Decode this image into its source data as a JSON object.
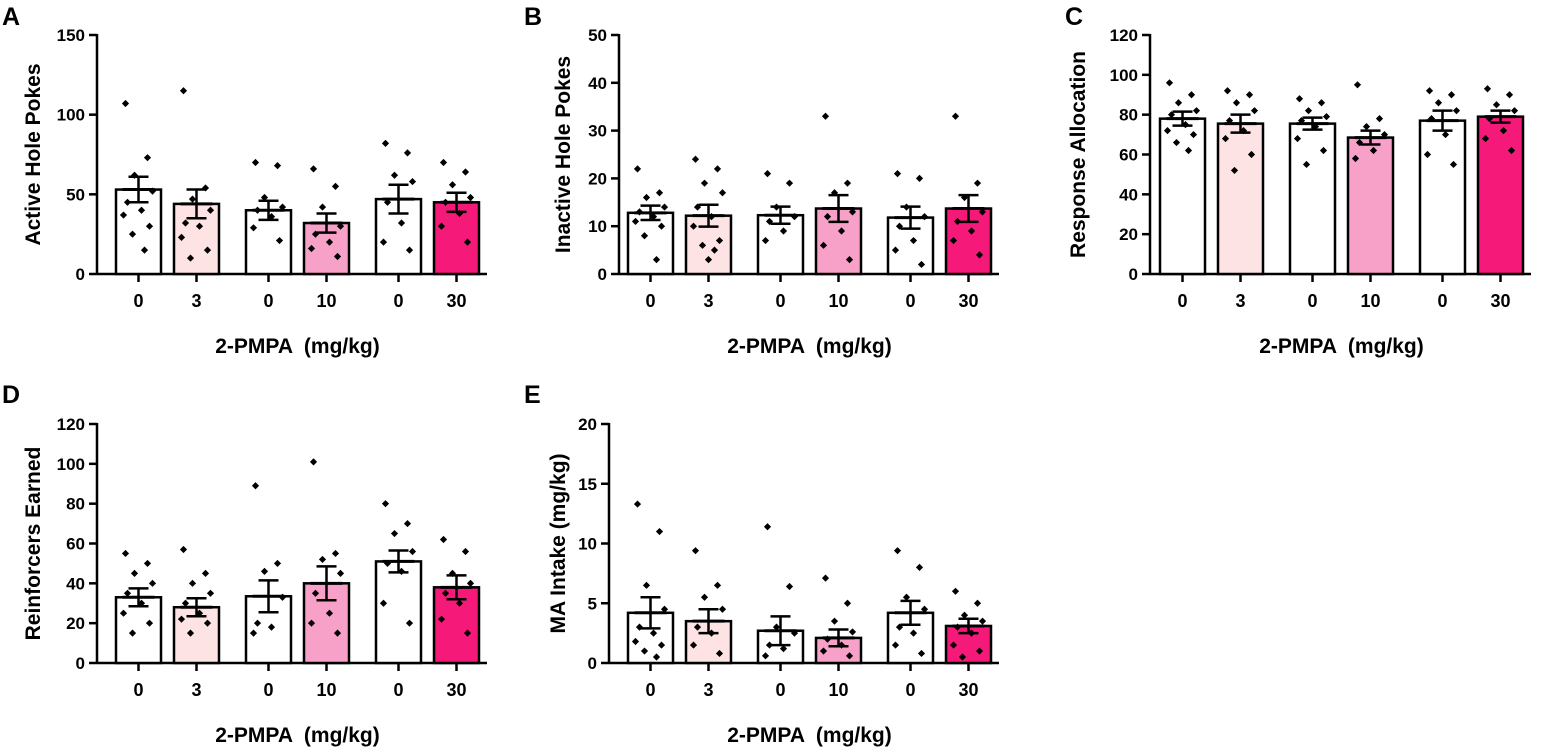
{
  "colors": {
    "axis": "#000000",
    "bar_fill": [
      "#ffffff",
      "#fde3e3",
      "#ffffff",
      "#f7a1c8",
      "#ffffff",
      "#f5197a"
    ],
    "bar_stroke": "#000000",
    "point": "#000000"
  },
  "chart_data": [
    {
      "panel": "A",
      "type": "bar",
      "ylabel": "Active Hole Pokes",
      "xlabel": "2-PMPA  (mg/kg)",
      "categories": [
        "0",
        "3",
        "0",
        "10",
        "0",
        "30"
      ],
      "ylim": [
        0,
        150
      ],
      "yticks": [
        0,
        50,
        100,
        150
      ],
      "values": [
        53,
        44,
        40,
        32,
        47,
        45
      ],
      "sem": [
        8,
        9,
        6,
        6,
        9,
        6
      ],
      "points": [
        [
          107,
          73,
          62,
          52,
          45,
          40,
          37,
          30,
          25,
          15
        ],
        [
          115,
          54,
          47,
          40,
          32,
          30,
          23,
          15,
          10
        ],
        [
          70,
          68,
          48,
          42,
          40,
          36,
          29,
          21
        ],
        [
          66,
          55,
          42,
          30,
          25,
          20,
          16,
          11
        ],
        [
          82,
          76,
          62,
          58,
          45,
          32,
          20,
          15
        ],
        [
          70,
          64,
          56,
          48,
          45,
          38,
          30,
          20
        ]
      ]
    },
    {
      "panel": "B",
      "type": "bar",
      "ylabel": "Inactive Hole Pokes",
      "xlabel": "2-PMPA  (mg/kg)",
      "categories": [
        "0",
        "3",
        "0",
        "10",
        "0",
        "30"
      ],
      "ylim": [
        0,
        50
      ],
      "yticks": [
        0,
        10,
        20,
        30,
        40,
        50
      ],
      "values": [
        12.8,
        12.2,
        12.3,
        13.7,
        11.8,
        13.7
      ],
      "sem": [
        1.5,
        2.3,
        1.8,
        2.8,
        2.3,
        2.8
      ],
      "points": [
        [
          22,
          17,
          16,
          14,
          13,
          12,
          11,
          10,
          8,
          3
        ],
        [
          24,
          22,
          19,
          17,
          14,
          12,
          10,
          7,
          6,
          5,
          3
        ],
        [
          21,
          19,
          14,
          12,
          11,
          9,
          7
        ],
        [
          33,
          19,
          17,
          13,
          12,
          9,
          6,
          3
        ],
        [
          21,
          20,
          14,
          12,
          10,
          7,
          5,
          2
        ],
        [
          33,
          19,
          16,
          13,
          11,
          9,
          7,
          4
        ]
      ]
    },
    {
      "panel": "C",
      "type": "bar",
      "ylabel": "Response Allocation",
      "xlabel": "2-PMPA  (mg/kg)",
      "categories": [
        "0",
        "3",
        "0",
        "10",
        "0",
        "30"
      ],
      "ylim": [
        0,
        120
      ],
      "yticks": [
        0,
        20,
        40,
        60,
        80,
        100,
        120
      ],
      "values": [
        78,
        75.5,
        75.5,
        68.5,
        77,
        79
      ],
      "sem": [
        3.5,
        4.5,
        3,
        3.5,
        5,
        3
      ],
      "points": [
        [
          96,
          90,
          86,
          82,
          80,
          75,
          72,
          70,
          66,
          62
        ],
        [
          92,
          90,
          86,
          82,
          77,
          72,
          68,
          60,
          52
        ],
        [
          88,
          86,
          82,
          79,
          77,
          74,
          68,
          62,
          55
        ],
        [
          95,
          78,
          74,
          70,
          66,
          62,
          58
        ],
        [
          92,
          90,
          86,
          82,
          78,
          70,
          60,
          55
        ],
        [
          93,
          90,
          85,
          82,
          78,
          72,
          68,
          62
        ]
      ]
    },
    {
      "panel": "D",
      "type": "bar",
      "ylabel": "Reinforcers Earned",
      "xlabel": "2-PMPA  (mg/kg)",
      "categories": [
        "0",
        "3",
        "0",
        "10",
        "0",
        "30"
      ],
      "ylim": [
        0,
        120
      ],
      "yticks": [
        0,
        20,
        40,
        60,
        80,
        100,
        120
      ],
      "values": [
        33,
        28,
        33.5,
        40,
        51,
        38
      ],
      "sem": [
        4.5,
        4.5,
        8,
        8.5,
        5.5,
        6
      ],
      "points": [
        [
          55,
          50,
          45,
          40,
          35,
          30,
          25,
          20,
          15
        ],
        [
          57,
          45,
          40,
          35,
          30,
          25,
          22,
          20,
          15
        ],
        [
          89,
          50,
          46,
          33,
          20,
          18,
          15
        ],
        [
          101,
          55,
          52,
          45,
          35,
          25,
          20,
          15
        ],
        [
          80,
          70,
          65,
          56,
          50,
          46,
          30,
          20
        ],
        [
          62,
          56,
          45,
          40,
          35,
          30,
          22,
          15
        ]
      ]
    },
    {
      "panel": "E",
      "type": "bar",
      "ylabel": "MA Intake (mg/kg)",
      "xlabel": "2-PMPA  (mg/kg)",
      "categories": [
        "0",
        "3",
        "0",
        "10",
        "0",
        "30"
      ],
      "ylim": [
        0,
        20
      ],
      "yticks": [
        0,
        5,
        10,
        15,
        20
      ],
      "values": [
        4.2,
        3.5,
        2.7,
        2.1,
        4.2,
        3.1
      ],
      "sem": [
        1.3,
        1.0,
        1.2,
        0.7,
        1.0,
        0.6
      ],
      "points": [
        [
          13.3,
          11,
          6.5,
          4.5,
          3,
          2.5,
          1.8,
          1.5,
          1.0,
          0.5
        ],
        [
          9.4,
          6.5,
          5.5,
          4.5,
          3.0,
          2.5,
          1.5,
          0.8
        ],
        [
          11.4,
          6.4,
          3.0,
          2.5,
          1.5,
          1.2,
          0.6
        ],
        [
          7.1,
          5.0,
          3.5,
          2.6,
          2.0,
          1.5,
          1.0,
          0.6
        ],
        [
          9.4,
          8.0,
          5.5,
          4.5,
          3.0,
          2.5,
          1.5,
          0.8
        ],
        [
          6.0,
          5.0,
          4.0,
          3.5,
          3.0,
          2.5,
          1.5,
          1.0,
          0.5
        ]
      ]
    }
  ]
}
